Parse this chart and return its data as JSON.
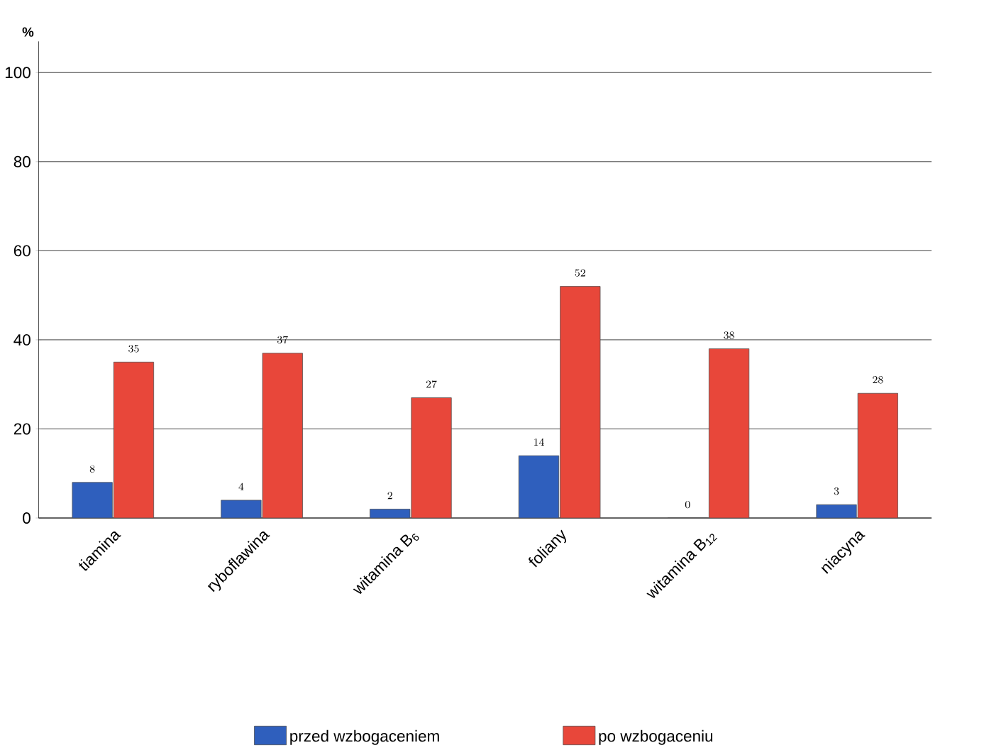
{
  "chart_data": {
    "type": "bar",
    "ylabel": "%",
    "categories": [
      "tiamina",
      "ryboflawina",
      "witamina B$_{6}$",
      "foliany",
      "witamina B$_{12}$",
      "niacyna"
    ],
    "series": [
      {
        "name": "przed wzbogaceniem",
        "color": "#2f5fbd",
        "values": [
          8,
          4,
          2,
          14,
          0,
          3
        ]
      },
      {
        "name": "po wzbogaceniu",
        "color": "#e8473a",
        "values": [
          35,
          37,
          27,
          52,
          38,
          28
        ]
      }
    ],
    "ylim": [
      0,
      107
    ],
    "yticks": [
      0,
      20,
      40,
      60,
      80,
      100
    ],
    "grid": "y",
    "legend": "bottom",
    "data_labels": true
  }
}
